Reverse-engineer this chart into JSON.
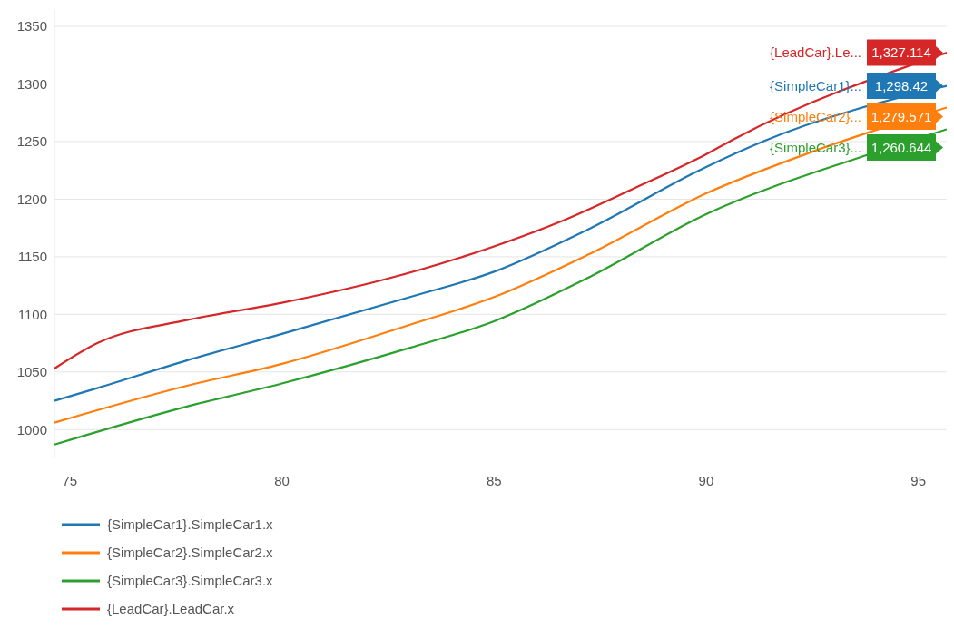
{
  "chart_data": {
    "type": "line",
    "xlim": [
      74.64,
      95.67
    ],
    "xticks": [
      75,
      80,
      85,
      90,
      95
    ],
    "ylim": [
      975,
      1365
    ],
    "yticks": [
      1000,
      1050,
      1100,
      1150,
      1200,
      1250,
      1300,
      1350
    ],
    "grid": "y",
    "legend": "bottom left",
    "line_style": "solid",
    "marker": "none",
    "series": [
      {
        "name": "{SimpleCar1}.SimpleCar1.x",
        "color": "#1f77b4",
        "x": [
          74.64,
          75.65,
          77.76,
          80,
          83.02,
          85,
          87.23,
          90,
          91.33,
          95.67
        ],
        "values": [
          1025,
          1036,
          1060,
          1083,
          1115,
          1137,
          1174,
          1228,
          1250,
          1298.42
        ],
        "value_labels": [
          null,
          null,
          null,
          null,
          null,
          null,
          null,
          null,
          null,
          "1,298.42"
        ]
      },
      {
        "name": "{SimpleCar2}.SimpleCar2.x",
        "color": "#ff7f0e",
        "x": [
          74.64,
          77.76,
          80,
          83.02,
          85,
          87.23,
          90,
          92.49,
          95.67
        ],
        "values": [
          1006,
          1038,
          1057,
          1091,
          1115,
          1152,
          1205,
          1241,
          1279.571
        ],
        "value_labels": [
          null,
          null,
          null,
          null,
          null,
          null,
          null,
          null,
          "1,279.571"
        ]
      },
      {
        "name": "{SimpleCar3}.SimpleCar3.x",
        "color": "#2ca02c",
        "x": [
          74.64,
          77.76,
          80,
          83.02,
          85,
          87.23,
          90,
          93.76,
          95.67
        ],
        "values": [
          987,
          1020,
          1040,
          1071,
          1094,
          1132,
          1187,
          1238,
          1260.644
        ],
        "value_labels": [
          null,
          null,
          null,
          null,
          null,
          null,
          null,
          null,
          "1,260.644"
        ]
      },
      {
        "name": "{LeadCar}.LeadCar.x",
        "color": "#d62728",
        "x": [
          74.64,
          75.65,
          77.76,
          80,
          82.39,
          85,
          86.6,
          88.28,
          90,
          90.7,
          95.67
        ],
        "values": [
          1053,
          1075,
          1095,
          1110,
          1130,
          1159,
          1181,
          1209,
          1239,
          1253,
          1327.114
        ],
        "value_labels": [
          null,
          null,
          null,
          null,
          null,
          null,
          null,
          null,
          null,
          null,
          "1,327.114"
        ]
      }
    ],
    "annotations": [
      "{SimpleCar1}...",
      "{SimpleCar2}...",
      "{SimpleCar3}...",
      "{LeadCar}.Le..."
    ]
  }
}
